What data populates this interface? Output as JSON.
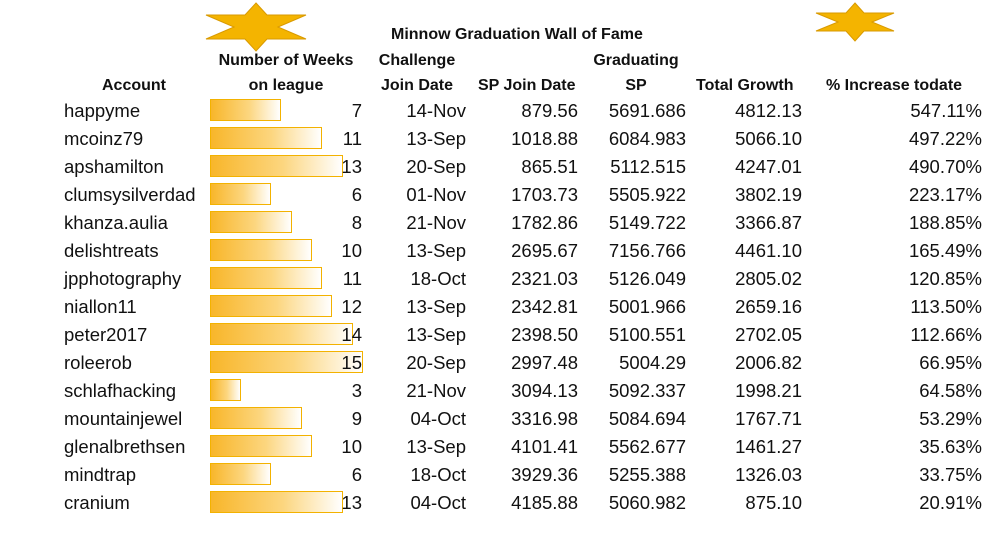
{
  "title": "Minnow Graduation Wall of Fame",
  "colors": {
    "star": "#f4b400",
    "bar_start": "#f8b62a",
    "bar_end": "#ffffff",
    "bar_border": "#f3b200"
  },
  "decorations": {
    "left_star_icon": "six-point-star-icon",
    "right_star_icon": "six-point-star-icon"
  },
  "headers": {
    "account": "Account",
    "weeks_line1": "Number of Weeks",
    "weeks_line2": "on league",
    "challenge_line1": "Challenge",
    "challenge_line2": "Join Date",
    "sp_join": "SP Join Date",
    "graduating_line1": "Graduating",
    "graduating_line2": "SP",
    "total_growth": "Total Growth",
    "pct_increase": "% Increase todate"
  },
  "weeks_scale_max": 15,
  "rows": [
    {
      "account": "happyme",
      "weeks": "7",
      "join_date": "14-Nov",
      "sp_join": "879.56",
      "grad_sp": "5691.686",
      "growth": "4812.13",
      "pct": "547.11%"
    },
    {
      "account": "mcoinz79",
      "weeks": "11",
      "join_date": "13-Sep",
      "sp_join": "1018.88",
      "grad_sp": "6084.983",
      "growth": "5066.10",
      "pct": "497.22%"
    },
    {
      "account": "apshamilton",
      "weeks": "13",
      "join_date": "20-Sep",
      "sp_join": "865.51",
      "grad_sp": "5112.515",
      "growth": "4247.01",
      "pct": "490.70%"
    },
    {
      "account": "clumsysilverdad",
      "weeks": "6",
      "join_date": "01-Nov",
      "sp_join": "1703.73",
      "grad_sp": "5505.922",
      "growth": "3802.19",
      "pct": "223.17%"
    },
    {
      "account": "khanza.aulia",
      "weeks": "8",
      "join_date": "21-Nov",
      "sp_join": "1782.86",
      "grad_sp": "5149.722",
      "growth": "3366.87",
      "pct": "188.85%"
    },
    {
      "account": "delishtreats",
      "weeks": "10",
      "join_date": "13-Sep",
      "sp_join": "2695.67",
      "grad_sp": "7156.766",
      "growth": "4461.10",
      "pct": "165.49%"
    },
    {
      "account": "jpphotography",
      "weeks": "11",
      "join_date": "18-Oct",
      "sp_join": "2321.03",
      "grad_sp": "5126.049",
      "growth": "2805.02",
      "pct": "120.85%"
    },
    {
      "account": "niallon11",
      "weeks": "12",
      "join_date": "13-Sep",
      "sp_join": "2342.81",
      "grad_sp": "5001.966",
      "growth": "2659.16",
      "pct": "113.50%"
    },
    {
      "account": "peter2017",
      "weeks": "14",
      "join_date": "13-Sep",
      "sp_join": "2398.50",
      "grad_sp": "5100.551",
      "growth": "2702.05",
      "pct": "112.66%"
    },
    {
      "account": "roleerob",
      "weeks": "15",
      "join_date": "20-Sep",
      "sp_join": "2997.48",
      "grad_sp": "5004.29",
      "growth": "2006.82",
      "pct": "66.95%"
    },
    {
      "account": "schlafhacking",
      "weeks": "3",
      "join_date": "21-Nov",
      "sp_join": "3094.13",
      "grad_sp": "5092.337",
      "growth": "1998.21",
      "pct": "64.58%"
    },
    {
      "account": "mountainjewel",
      "weeks": "9",
      "join_date": "04-Oct",
      "sp_join": "3316.98",
      "grad_sp": "5084.694",
      "growth": "1767.71",
      "pct": "53.29%"
    },
    {
      "account": "glenalbrethsen",
      "weeks": "10",
      "join_date": "13-Sep",
      "sp_join": "4101.41",
      "grad_sp": "5562.677",
      "growth": "1461.27",
      "pct": "35.63%"
    },
    {
      "account": "mindtrap",
      "weeks": "6",
      "join_date": "18-Oct",
      "sp_join": "3929.36",
      "grad_sp": "5255.388",
      "growth": "1326.03",
      "pct": "33.75%"
    },
    {
      "account": "cranium",
      "weeks": "13",
      "join_date": "04-Oct",
      "sp_join": "4185.88",
      "grad_sp": "5060.982",
      "growth": "875.10",
      "pct": "20.91%"
    }
  ]
}
